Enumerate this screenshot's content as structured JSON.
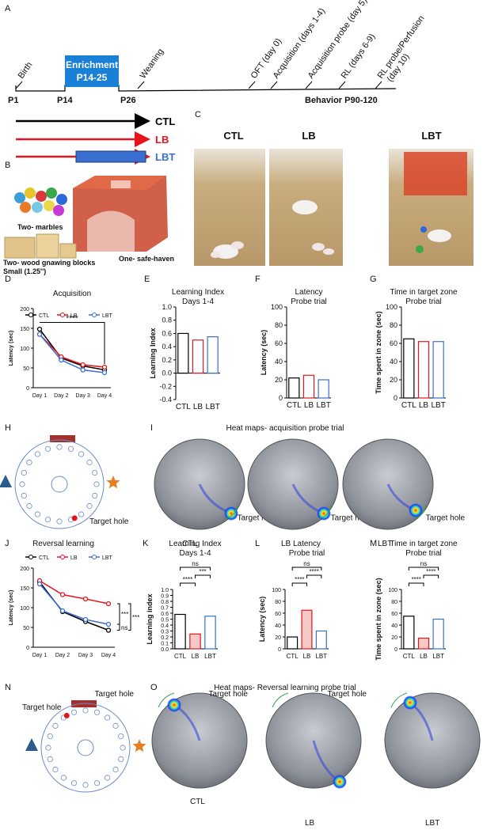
{
  "timeline": {
    "panel_label": "A",
    "events": [
      "Birth",
      "Weaning",
      "OFT (day 0)",
      "Acquisition (days 1-4)",
      "Acquisition probe (day 5)",
      "RL (days 6-9)"
    ],
    "last_event": [
      "RL probe/Perfusion",
      "(day 10)"
    ],
    "enrichment": [
      "Enrichment",
      "P14-25"
    ],
    "ages": [
      "P1",
      "P14",
      "P26"
    ],
    "behavior": "Behavior P90-120",
    "groups": [
      {
        "name": "CTL",
        "color": "#000000"
      },
      {
        "name": "LB",
        "color": "#e8141b"
      },
      {
        "name": "LBT",
        "color": "#3a6fd0"
      }
    ]
  },
  "enrichment_items": {
    "panel_label": "B",
    "marbles": "Two- marbles",
    "safe_haven": "One- safe-haven",
    "blocks": [
      "Two- wood gnawing blocks",
      "Small (1.25'')"
    ]
  },
  "cages": {
    "panel_label": "C",
    "labels": [
      "CTL",
      "LB",
      "LBT"
    ]
  },
  "probe_maps": [
    {
      "maze_label": "H",
      "panel_label": "I",
      "title": "Heat maps- acquisition probe trial",
      "groups": [
        "CTL",
        "LB",
        "LBT"
      ],
      "target": "Target hole"
    },
    {
      "maze_label": "N",
      "panel_label": "O",
      "title": "Heat maps- Reversal learning probe trial",
      "groups": [
        "CTL",
        "LB",
        "LBT"
      ],
      "target": "Target hole"
    }
  ],
  "chart_data": [
    {
      "panel_label": "D",
      "type": "line",
      "title": "Acquisition",
      "y_label": "Latency (sec)",
      "categories": [
        "Day 1",
        "Day 2",
        "Day 3",
        "Day 4"
      ],
      "series": [
        {
          "name": "CTL",
          "color": "#000000",
          "values": [
            148,
            75,
            55,
            45
          ]
        },
        {
          "name": "LB",
          "color": "#e8141b",
          "values": [
            135,
            78,
            58,
            52
          ]
        },
        {
          "name": "LBT",
          "color": "#3a6fd0",
          "values": [
            135,
            70,
            45,
            38
          ]
        }
      ],
      "ylim": [
        0,
        200
      ],
      "yticks": [
        0,
        50,
        100,
        150,
        200
      ],
      "annotations": [
        "****"
      ]
    },
    {
      "panel_label": "E",
      "type": "bar",
      "title": "Learning Index",
      "subtitle": "Days 1-4",
      "y_label": "Learning Index",
      "categories": [
        "CTL",
        "LB",
        "LBT"
      ],
      "values": [
        0.6,
        0.5,
        0.55
      ],
      "colors": [
        "#000000",
        "#e8141b",
        "#3a6fd0"
      ],
      "ylim": [
        -0.4,
        1.0
      ],
      "yticks": [
        -0.4,
        -0.2,
        {
          "value": 0,
          "label": "0.0"
        },
        0.2,
        0.4,
        0.6,
        0.8,
        {
          "value": 1,
          "label": "1.0"
        }
      ],
      "annotations": []
    },
    {
      "panel_label": "F",
      "type": "bar",
      "title": "Latency",
      "subtitle": "Probe trial",
      "y_label": "Latency (sec)",
      "categories": [
        "CTL",
        "LB",
        "LBT"
      ],
      "values": [
        22,
        25,
        20
      ],
      "colors": [
        "#000000",
        "#e8141b",
        "#3a6fd0"
      ],
      "ylim": [
        0,
        100
      ],
      "yticks": [
        0,
        20,
        40,
        60,
        80,
        100
      ],
      "annotations": []
    },
    {
      "panel_label": "G",
      "type": "bar",
      "title": "Time in target zone",
      "subtitle": "Probe trial",
      "y_label": "Time spent in zone (sec)",
      "categories": [
        "CTL",
        "LB",
        "LBT"
      ],
      "values": [
        65,
        62,
        62
      ],
      "colors": [
        "#000000",
        "#e8141b",
        "#3a6fd0"
      ],
      "ylim": [
        0,
        100
      ],
      "yticks": [
        0,
        20,
        40,
        60,
        80,
        100
      ],
      "annotations": []
    },
    {
      "panel_label": "J",
      "type": "line",
      "title": "Reversal learning",
      "y_label": "Latency (sec)",
      "categories": [
        "Day 1",
        "Day 2",
        "Day 3",
        "Day 4"
      ],
      "series": [
        {
          "name": "CTL",
          "color": "#000000",
          "values": [
            165,
            90,
            65,
            43
          ]
        },
        {
          "name": "LB",
          "color": "#e8141b",
          "values": [
            168,
            133,
            122,
            110
          ]
        },
        {
          "name": "LBT",
          "color": "#3a6fd0",
          "values": [
            160,
            92,
            70,
            58
          ]
        }
      ],
      "ylim": [
        0,
        200
      ],
      "yticks": [
        0,
        50,
        100,
        150,
        200
      ],
      "annotations": [
        "***",
        "***",
        "ns"
      ]
    },
    {
      "panel_label": "K",
      "type": "bar",
      "title": "Learning Index",
      "subtitle": "Days 1-4",
      "y_label": "Learning index",
      "categories": [
        "CTL",
        "LB",
        "LBT"
      ],
      "values": [
        0.58,
        0.25,
        0.55
      ],
      "colors": [
        "#000000",
        "#e8141b",
        "#3a6fd0"
      ],
      "ylim": [
        0,
        1.0
      ],
      "yticks": [
        {
          "value": 0,
          "label": "0.0"
        },
        0.1,
        0.2,
        0.3,
        0.4,
        0.5,
        0.6,
        0.7,
        0.8,
        0.9,
        {
          "value": 1,
          "label": "1.0"
        }
      ],
      "annotations": [
        "ns",
        "****",
        "***"
      ]
    },
    {
      "panel_label": "L",
      "type": "bar",
      "title": "Latency",
      "subtitle": "Probe trial",
      "y_label": "Latency (sec)",
      "categories": [
        "CTL",
        "LB",
        "LBT"
      ],
      "values": [
        20,
        65,
        30
      ],
      "colors": [
        "#000000",
        "#e8141b",
        "#3a6fd0"
      ],
      "ylim": [
        0,
        100
      ],
      "yticks": [
        0,
        20,
        40,
        60,
        80,
        100
      ],
      "annotations": [
        "ns",
        "****",
        "****"
      ]
    },
    {
      "panel_label": "M",
      "type": "bar",
      "title": "Time in target zone",
      "subtitle": "Probe trial",
      "y_label": "Time spent in zone  (sec)",
      "categories": [
        "CTL",
        "LB",
        "LBT"
      ],
      "values": [
        55,
        18,
        50
      ],
      "colors": [
        "#000000",
        "#e8141b",
        "#3a6fd0"
      ],
      "ylim": [
        0,
        100
      ],
      "yticks": [
        0,
        20,
        40,
        60,
        80,
        100
      ],
      "annotations": [
        "ns",
        "****",
        "****"
      ]
    }
  ]
}
